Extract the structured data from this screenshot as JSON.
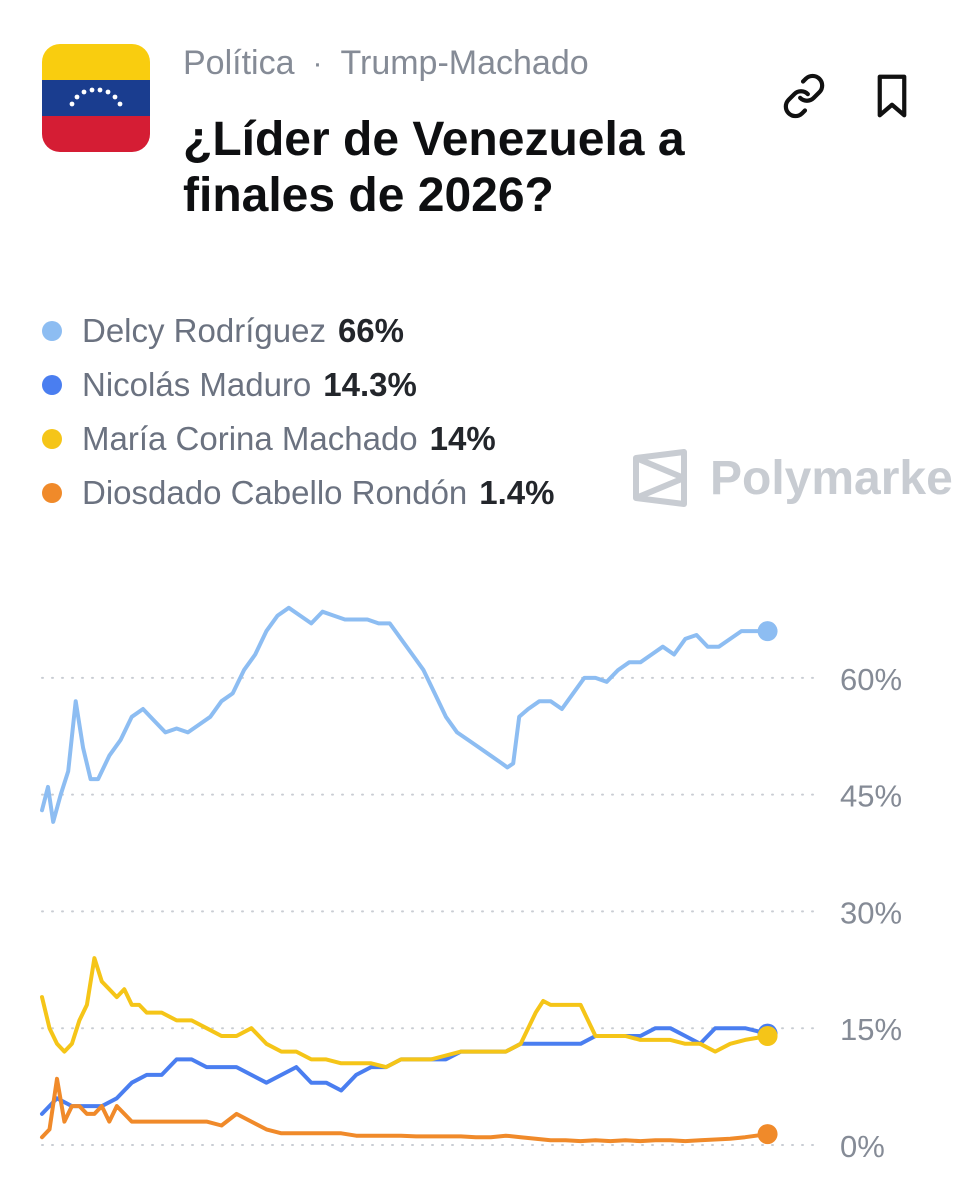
{
  "header": {
    "category": "Política",
    "separator": "·",
    "tag": "Trump-Machado",
    "title": "¿Líder de Venezuela a finales de 2026?",
    "flag_colors": [
      "#f9cd0f",
      "#1a3d8f",
      "#d51d34"
    ]
  },
  "actions": {
    "link_icon": "link-icon",
    "bookmark_icon": "bookmark-icon"
  },
  "watermark": {
    "text": "Polymarke",
    "icon": "polymarket-logo-icon"
  },
  "chart_data": {
    "type": "line",
    "ylim": [
      0,
      70
    ],
    "yticks": [
      0,
      15,
      30,
      45,
      60
    ],
    "ytick_labels": [
      "0%",
      "15%",
      "30%",
      "45%",
      "60%"
    ],
    "grid": true,
    "grid_style": "dotted",
    "legend_position": "top-left",
    "x_range": [
      0,
      100
    ],
    "series": [
      {
        "name": "Delcy Rodríguez",
        "value_label": "66%",
        "color": "#8dbdf2",
        "x": [
          0,
          0.8,
          1.5,
          2.5,
          3.5,
          4.5,
          5.5,
          6.5,
          7.5,
          9,
          10.5,
          12,
          13.5,
          15,
          16.5,
          18,
          19.5,
          21,
          22.5,
          24,
          25.5,
          27,
          28.5,
          30,
          31.5,
          33,
          34.5,
          36,
          37.5,
          39,
          40.5,
          42,
          43.5,
          45,
          46.5,
          48,
          49.5,
          51,
          52.5,
          54,
          55.5,
          57,
          58.5,
          60,
          61.5,
          62.2,
          63,
          63.8,
          65,
          66.5,
          68,
          69.5,
          71,
          72.5,
          74,
          75.5,
          77,
          78.5,
          80,
          81.5,
          83,
          84.5,
          86,
          87.5,
          89,
          90.5,
          92,
          93.5,
          95,
          97
        ],
        "y": [
          43,
          46,
          41.5,
          45,
          48,
          57,
          51,
          47,
          47,
          50,
          52,
          55,
          56,
          54.5,
          53,
          53.5,
          53,
          54,
          55,
          57,
          58,
          61,
          63,
          66,
          68,
          69,
          68,
          67,
          68.5,
          68,
          67.5,
          67.5,
          67.5,
          67,
          67,
          65,
          63,
          61,
          58,
          55,
          53,
          52,
          51,
          50,
          49,
          48.5,
          49,
          55,
          56,
          57,
          57,
          56,
          58,
          60,
          60,
          59.5,
          61,
          62,
          62,
          63,
          64,
          63,
          65,
          65.5,
          64,
          64,
          65,
          66,
          66,
          66
        ]
      },
      {
        "name": "Nicolás Maduro",
        "value_label": "14.3%",
        "color": "#4a7ef0",
        "x": [
          0,
          2,
          4,
          6,
          8,
          10,
          12,
          14,
          16,
          18,
          20,
          22,
          24,
          26,
          28,
          30,
          32,
          34,
          36,
          38,
          40,
          42,
          44,
          46,
          48,
          50,
          52,
          54,
          56,
          58,
          60,
          62,
          64,
          66,
          68,
          70,
          72,
          74,
          76,
          78,
          80,
          82,
          84,
          86,
          88,
          90,
          92,
          94,
          97
        ],
        "y": [
          4,
          6,
          5,
          5,
          5,
          6,
          8,
          9,
          9,
          11,
          11,
          10,
          10,
          10,
          9,
          8,
          9,
          10,
          8,
          8,
          7,
          9,
          10,
          10,
          11,
          11,
          11,
          11,
          12,
          12,
          12,
          12,
          13,
          13,
          13,
          13,
          13,
          14,
          14,
          14,
          14,
          15,
          15,
          14,
          13,
          15,
          15,
          15,
          14.3
        ]
      },
      {
        "name": "María Corina Machado",
        "value_label": "14%",
        "color": "#f5c518",
        "x": [
          0,
          1,
          2,
          3,
          4,
          5,
          6,
          7,
          8,
          9,
          10,
          11,
          12,
          13,
          14,
          16,
          18,
          20,
          22,
          24,
          26,
          28,
          30,
          32,
          34,
          36,
          38,
          40,
          42,
          44,
          46,
          48,
          50,
          52,
          54,
          56,
          58,
          60,
          62,
          64,
          66,
          67,
          68,
          70,
          72,
          73,
          74,
          76,
          78,
          80,
          82,
          84,
          86,
          88,
          90,
          92,
          94,
          97
        ],
        "y": [
          19,
          15,
          13,
          12,
          13,
          16,
          18,
          24,
          21,
          20,
          19,
          20,
          18,
          18,
          17,
          17,
          16,
          16,
          15,
          14,
          14,
          15,
          13,
          12,
          12,
          11,
          11,
          10.5,
          10.5,
          10.5,
          10,
          11,
          11,
          11,
          11.5,
          12,
          12,
          12,
          12,
          13,
          17,
          18.5,
          18,
          18,
          18,
          16,
          14,
          14,
          14,
          13.5,
          13.5,
          13.5,
          13,
          13,
          12,
          13,
          13.5,
          14
        ]
      },
      {
        "name": "Diosdado Cabello Rondón",
        "value_label": "1.4%",
        "color": "#f08a2a",
        "x": [
          0,
          1,
          2,
          3,
          4,
          5,
          6,
          7,
          8,
          9,
          10,
          12,
          14,
          16,
          18,
          20,
          22,
          24,
          26,
          28,
          30,
          32,
          34,
          36,
          38,
          40,
          42,
          44,
          46,
          48,
          50,
          52,
          54,
          56,
          58,
          60,
          62,
          64,
          66,
          68,
          70,
          72,
          74,
          76,
          78,
          80,
          82,
          84,
          86,
          88,
          90,
          92,
          94,
          97
        ],
        "y": [
          1,
          2,
          8.5,
          3,
          5,
          5,
          4,
          4,
          5,
          3,
          5,
          3,
          3,
          3,
          3,
          3,
          3,
          2.5,
          4,
          3,
          2,
          1.5,
          1.5,
          1.5,
          1.5,
          1.5,
          1.2,
          1.2,
          1.2,
          1.2,
          1.1,
          1.1,
          1.1,
          1.1,
          1,
          1,
          1.2,
          1,
          0.8,
          0.6,
          0.6,
          0.5,
          0.6,
          0.5,
          0.6,
          0.5,
          0.6,
          0.6,
          0.5,
          0.6,
          0.7,
          0.8,
          1,
          1.4
        ]
      }
    ]
  }
}
